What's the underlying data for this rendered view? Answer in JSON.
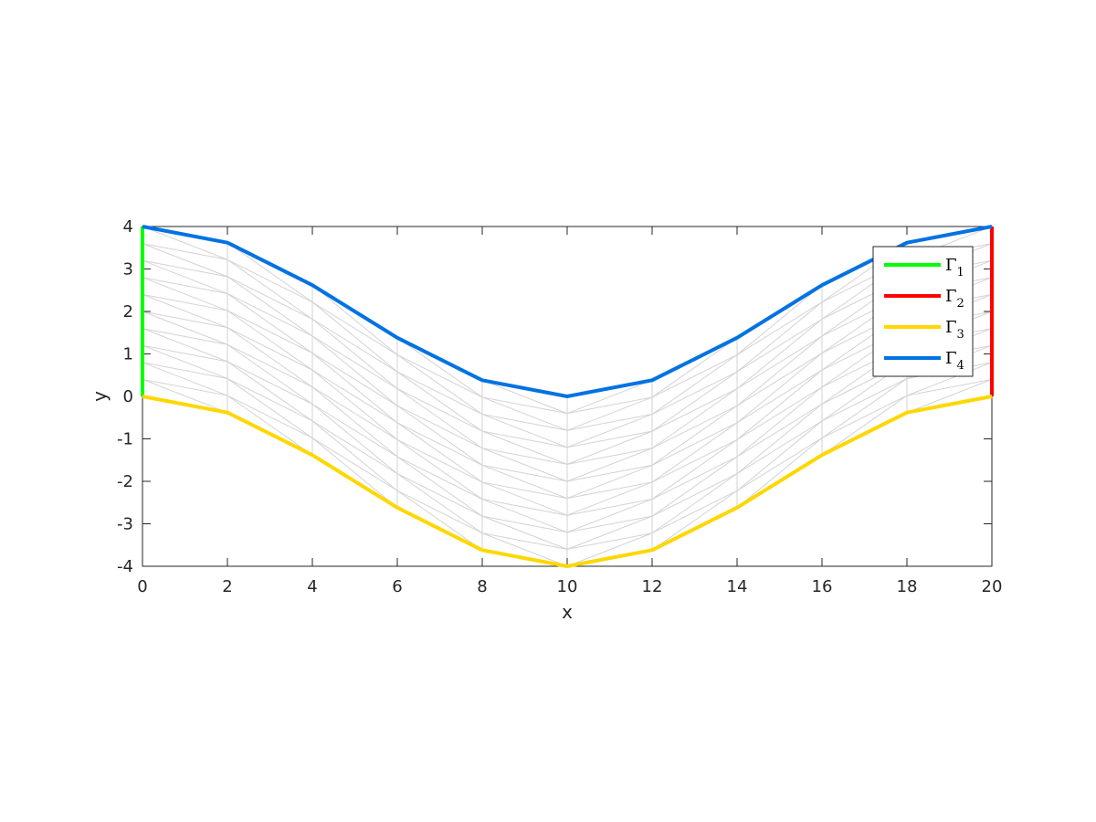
{
  "chart_data": {
    "type": "line",
    "xlabel": "x",
    "ylabel": "y",
    "xlim": [
      0,
      20
    ],
    "ylim": [
      -4,
      4
    ],
    "xticks": [
      0,
      2,
      4,
      6,
      8,
      10,
      12,
      14,
      16,
      18,
      20
    ],
    "yticks": [
      -4,
      -3,
      -2,
      -1,
      0,
      1,
      2,
      3,
      4
    ],
    "grid": false,
    "legend_location": "top-right",
    "mesh": {
      "color": "#d3d3d3",
      "x_columns": [
        0,
        2,
        4,
        6,
        8,
        10,
        12,
        14,
        16,
        18,
        20
      ],
      "rows_per_column": 10,
      "diagonal_direction": "toward-center"
    },
    "series": [
      {
        "name": "Γ1",
        "label_main": "Γ",
        "label_sub": "1",
        "color": "#00ff00",
        "x": [
          0,
          0
        ],
        "y": [
          0,
          4
        ]
      },
      {
        "name": "Γ2",
        "label_main": "Γ",
        "label_sub": "2",
        "color": "#ff0000",
        "x": [
          20,
          20
        ],
        "y": [
          0,
          4
        ]
      },
      {
        "name": "Γ3",
        "label_main": "Γ",
        "label_sub": "3",
        "color": "#ffd700",
        "x": [
          0,
          2,
          4,
          6,
          8,
          10,
          12,
          14,
          16,
          18,
          20
        ],
        "y": [
          0,
          -0.38,
          -1.38,
          -2.62,
          -3.62,
          -4,
          -3.62,
          -2.62,
          -1.38,
          -0.38,
          0
        ]
      },
      {
        "name": "Γ4",
        "label_main": "Γ",
        "label_sub": "4",
        "color": "#0072e3",
        "x": [
          0,
          2,
          4,
          6,
          8,
          10,
          12,
          14,
          16,
          18,
          20
        ],
        "y": [
          4,
          3.62,
          2.62,
          1.38,
          0.38,
          0,
          0.38,
          1.38,
          2.62,
          3.62,
          4
        ]
      }
    ]
  }
}
